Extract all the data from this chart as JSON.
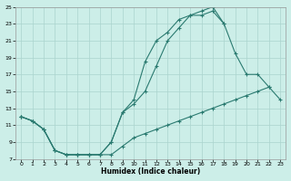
{
  "xlabel": "Humidex (Indice chaleur)",
  "background_color": "#cceee8",
  "grid_color": "#aad4ce",
  "line_color": "#2a7a70",
  "xlim": [
    -0.5,
    23.5
  ],
  "ylim": [
    7,
    25
  ],
  "xticks": [
    0,
    1,
    2,
    3,
    4,
    5,
    6,
    7,
    8,
    9,
    10,
    11,
    12,
    13,
    14,
    15,
    16,
    17,
    18,
    19,
    20,
    21,
    22,
    23
  ],
  "yticks": [
    7,
    9,
    11,
    13,
    15,
    17,
    19,
    21,
    23,
    25
  ],
  "series1_x": [
    0,
    1,
    2,
    3,
    4,
    5,
    6,
    7,
    8,
    9,
    10,
    11,
    12,
    13,
    14,
    15,
    16,
    17,
    18,
    19,
    20,
    21,
    22,
    23
  ],
  "series1_y": [
    12.0,
    11.5,
    10.5,
    8.0,
    7.5,
    7.5,
    7.5,
    7.5,
    7.5,
    8.5,
    9.5,
    10.0,
    10.5,
    11.0,
    11.5,
    12.0,
    12.5,
    13.0,
    13.5,
    14.0,
    14.5,
    15.0,
    15.5,
    14.0
  ],
  "series2_x": [
    0,
    1,
    2,
    3,
    4,
    5,
    6,
    7,
    8,
    9,
    10,
    11,
    12,
    13,
    14,
    15,
    16,
    17,
    18,
    19,
    20,
    21,
    22
  ],
  "series2_y": [
    12.0,
    11.5,
    10.5,
    8.0,
    7.5,
    7.5,
    7.5,
    7.5,
    9.0,
    12.5,
    13.5,
    15.0,
    18.0,
    21.0,
    22.5,
    24.0,
    24.0,
    24.5,
    23.0,
    19.5,
    17.0,
    17.0,
    15.5
  ],
  "series3_x": [
    0,
    1,
    2,
    3,
    4,
    5,
    6,
    7,
    8,
    9,
    10,
    11,
    12,
    13,
    14,
    15,
    16,
    17,
    18
  ],
  "series3_y": [
    12.0,
    11.5,
    10.5,
    8.0,
    7.5,
    7.5,
    7.5,
    7.5,
    9.0,
    12.5,
    14.0,
    18.5,
    21.0,
    22.0,
    23.5,
    24.0,
    24.5,
    25.0,
    23.0
  ]
}
